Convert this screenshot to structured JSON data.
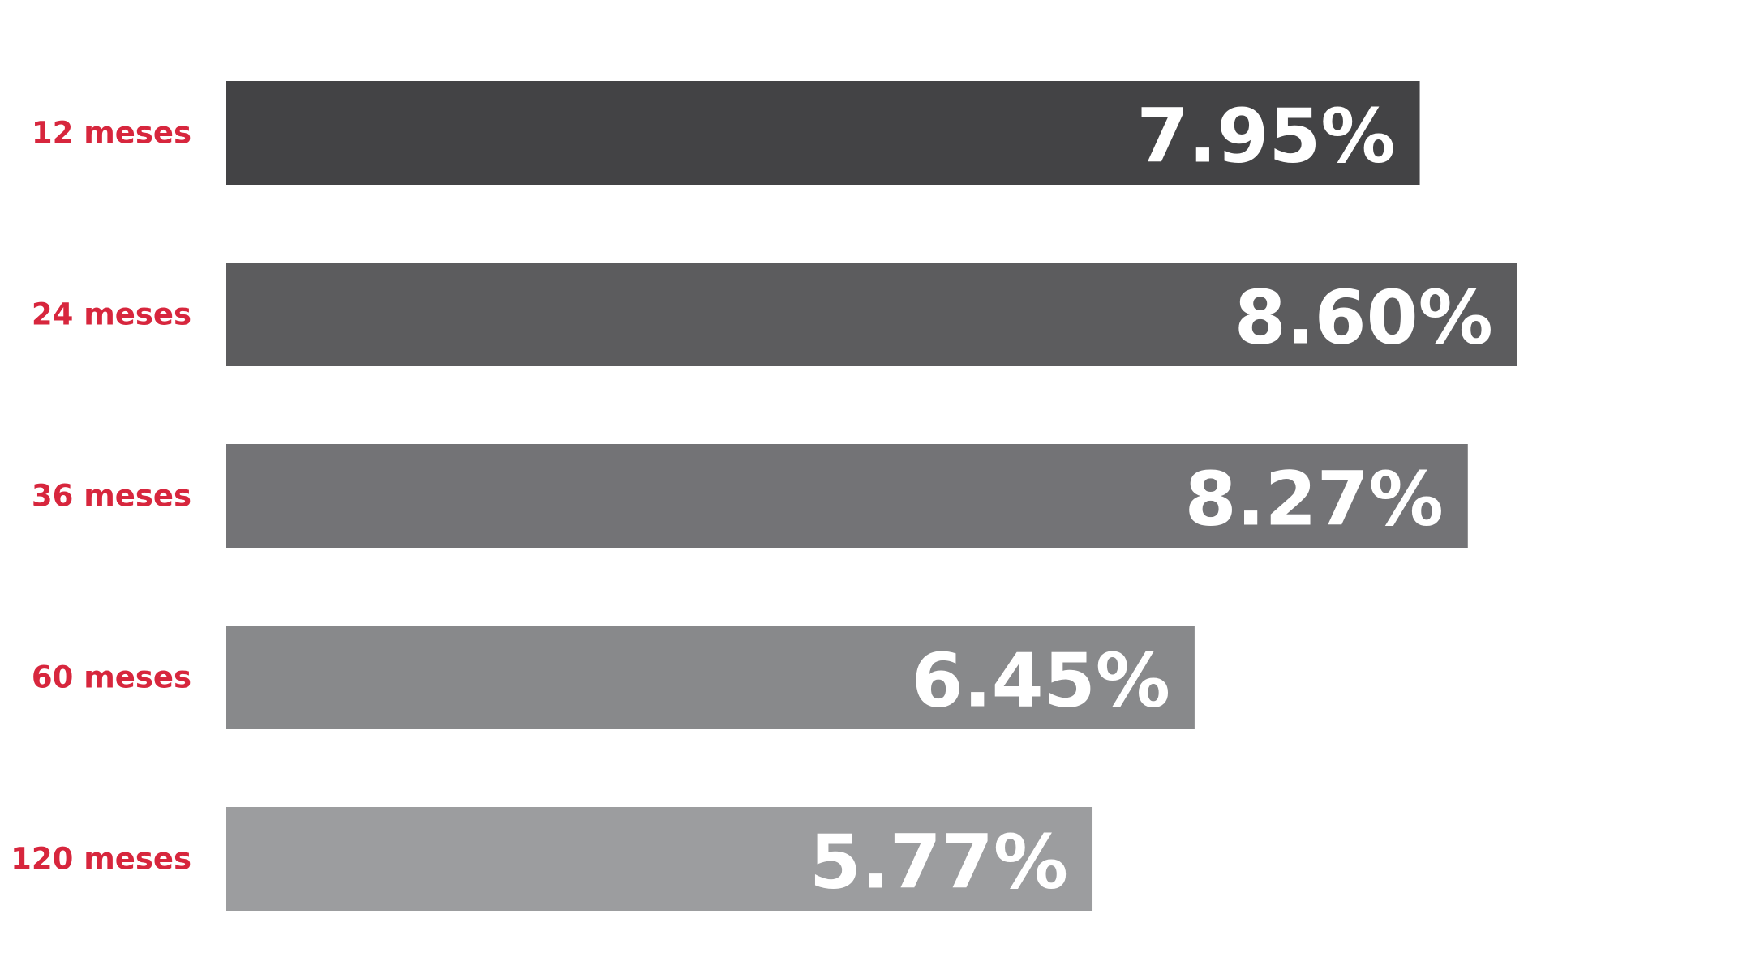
{
  "chart_data": {
    "type": "bar",
    "orientation": "horizontal",
    "categories": [
      "12 meses",
      "24 meses",
      "36 meses",
      "60 meses",
      "120 meses"
    ],
    "values": [
      7.95,
      8.6,
      8.27,
      6.45,
      5.77
    ],
    "value_labels": [
      "7.95%",
      "8.60%",
      "8.27%",
      "6.45%",
      "5.77%"
    ],
    "colors": [
      "#434345",
      "#5c5c5e",
      "#737376",
      "#88898b",
      "#9c9d9f"
    ],
    "label_color": "#d7263d",
    "xlim": [
      0,
      10
    ]
  }
}
